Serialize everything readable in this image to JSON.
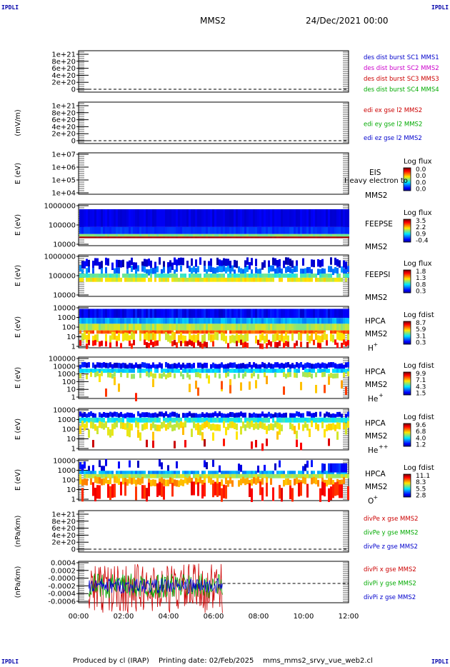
{
  "corner_label": "IPDLI",
  "header": {
    "spacecraft": "MMS2",
    "datetime": "24/Dec/2021 00:00"
  },
  "footer": {
    "producer": "Produced by cl (IRAP)",
    "printing_date": "Printing date: 02/Feb/2025",
    "script": "mms_mms2_srvy_vue_web2.cl"
  },
  "x_axis": {
    "ticks": [
      "00:00",
      "02:00",
      "04:00",
      "06:00",
      "08:00",
      "10:00",
      "12:00"
    ],
    "range_hours": [
      0,
      12
    ]
  },
  "panels": [
    {
      "id": "dist",
      "ylabel": "",
      "yticks": [
        "1e+21",
        "8e+20",
        "6e+20",
        "4e+20",
        "2e+20",
        "0"
      ],
      "legend": [
        {
          "text": "des dist burst SC1 MMS1",
          "color": "#0000cc"
        },
        {
          "text": "des dist burst SC2 MMS2",
          "color": "#cc00cc"
        },
        {
          "text": "des dist burst SC3 MMS3",
          "color": "#cc0000"
        },
        {
          "text": "des dist burst SC4 MMS4",
          "color": "#00aa00"
        }
      ]
    },
    {
      "id": "edi",
      "ylabel": "(mV/m)",
      "yticks": [
        "1e+21",
        "8e+20",
        "6e+20",
        "4e+20",
        "2e+20",
        "0"
      ],
      "legend": [
        {
          "text": "edi ex gse l2 MMS2",
          "color": "#cc0000"
        },
        {
          "text": "edi ey gse l2 MMS2",
          "color": "#00aa00"
        },
        {
          "text": "edi ez gse l2 MMS2",
          "color": "#0000cc"
        }
      ]
    },
    {
      "id": "eis",
      "ylabel": "E (eV)",
      "yticks": [
        "1e+07",
        "1e+06",
        "1e+05",
        "1e+04"
      ],
      "label": [
        "EIS",
        "MMS2"
      ],
      "overlay": "Heavy electron to",
      "colorbar": {
        "title": "Log flux",
        "ticks": [
          "0.0",
          "0.0",
          "0.0",
          "0.0"
        ]
      }
    },
    {
      "id": "feepse",
      "ylabel": "E (eV)",
      "yticks": [
        "1000000",
        "100000",
        "10000"
      ],
      "label": [
        "FEEPSE",
        "MMS2"
      ],
      "colorbar": {
        "title": "Log flux",
        "ticks": [
          "3.5",
          "2.2",
          "0.9",
          "-0.4"
        ]
      }
    },
    {
      "id": "feepsi",
      "ylabel": "E (eV)",
      "yticks": [
        "1000000",
        "100000",
        "10000"
      ],
      "label": [
        "FEEPSI",
        "MMS2"
      ],
      "colorbar": {
        "title": "Log flux",
        "ticks": [
          "1.8",
          "1.3",
          "0.8",
          "0.3"
        ]
      }
    },
    {
      "id": "hpca_h",
      "ylabel": "E (eV)",
      "yticks": [
        "10000",
        "1000",
        "100",
        "10",
        "1"
      ],
      "label": [
        "HPCA",
        "MMS2"
      ],
      "species": "H",
      "charge": "+",
      "colorbar": {
        "title": "Log fdist",
        "ticks": [
          "8.7",
          "5.9",
          "3.1",
          "0.3"
        ]
      }
    },
    {
      "id": "hpca_he",
      "ylabel": "E (eV)",
      "yticks": [
        "100000",
        "10000",
        "1000",
        "100",
        "10",
        "1"
      ],
      "label": [
        "HPCA",
        "MMS2"
      ],
      "species": "He",
      "charge": "+",
      "colorbar": {
        "title": "Log fdist",
        "ticks": [
          "9.9",
          "7.1",
          "4.3",
          "1.5"
        ]
      }
    },
    {
      "id": "hpca_hepp",
      "ylabel": "E (eV)",
      "yticks": [
        "10000",
        "1000",
        "100",
        "10",
        "1"
      ],
      "label": [
        "HPCA",
        "MMS2"
      ],
      "species": "He",
      "charge": "++",
      "colorbar": {
        "title": "Log fdist",
        "ticks": [
          "9.6",
          "6.8",
          "4.0",
          "1.2"
        ]
      }
    },
    {
      "id": "hpca_o",
      "ylabel": "E (eV)",
      "yticks": [
        "10000",
        "1000",
        "100",
        "10",
        "1"
      ],
      "label": [
        "HPCA",
        "MMS2"
      ],
      "species": "O",
      "charge": "+",
      "colorbar": {
        "title": "Log fdist",
        "ticks": [
          "11.1",
          "8.3",
          "5.5",
          "2.8"
        ]
      }
    },
    {
      "id": "divpe",
      "ylabel": "(nPa/km)",
      "yticks": [
        "1e+21",
        "8e+20",
        "6e+20",
        "4e+20",
        "2e+20",
        "0"
      ],
      "legend": [
        {
          "text": "divPe x gse MMS2",
          "color": "#cc0000"
        },
        {
          "text": "divPe y gse MMS2",
          "color": "#00aa00"
        },
        {
          "text": "divPe z gse MMS2",
          "color": "#0000cc"
        }
      ]
    },
    {
      "id": "divpi",
      "ylabel": "(nPa/km)",
      "yticks": [
        "0.0004",
        "0.0002",
        "-0.0000",
        "-0.0002",
        "-0.0004",
        "-0.0006"
      ],
      "legend": [
        {
          "text": "divPi x gse MMS2",
          "color": "#cc0000"
        },
        {
          "text": "divPi y gse MMS2",
          "color": "#00aa00"
        },
        {
          "text": "divPi z gse MMS2",
          "color": "#0000cc"
        }
      ]
    }
  ],
  "chart_data": {
    "type": "heatmap",
    "title": "MMS2",
    "x_range_hours": [
      0,
      12
    ],
    "series": [
      {
        "name": "divPi x gse MMS2",
        "color": "#cc0000",
        "x_range_hours": [
          0.45,
          6.4
        ],
        "value_range": [
          -0.0006,
          0.0004
        ]
      },
      {
        "name": "divPi y gse MMS2",
        "color": "#00aa00",
        "x_range_hours": [
          0.45,
          6.4
        ],
        "value_range": [
          -0.0003,
          0.0002
        ]
      },
      {
        "name": "divPi z gse MMS2",
        "color": "#0000cc",
        "x_range_hours": [
          0.45,
          6.4
        ],
        "value_range": [
          -0.0002,
          0.0001
        ]
      }
    ]
  }
}
